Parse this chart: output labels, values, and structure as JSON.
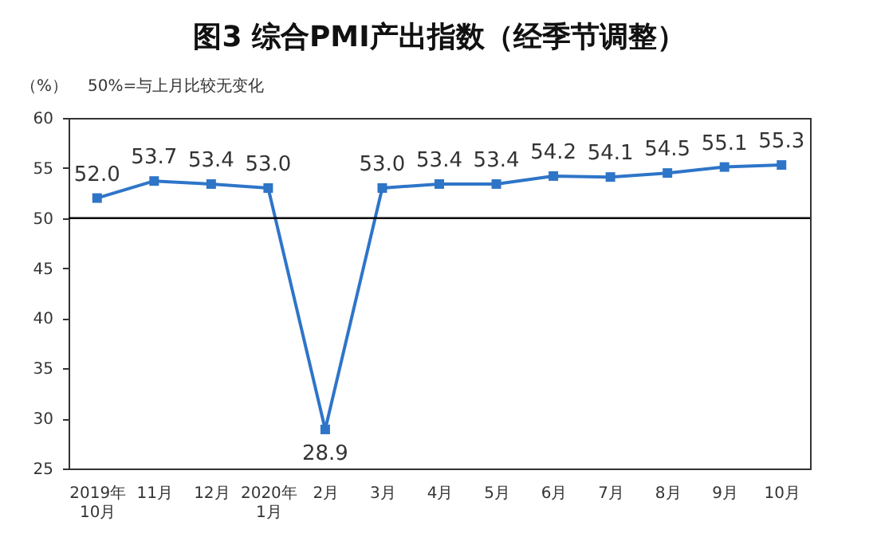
{
  "chart_data": {
    "type": "line",
    "title": "图3 综合PMI产出指数（经季节调整）",
    "ylabel": "（%）",
    "annotations": [
      "50%=与上月比较无变化"
    ],
    "categories": [
      "2019年\n10月",
      "11月",
      "12月",
      "2020年\n1月",
      "2月",
      "3月",
      "4月",
      "5月",
      "6月",
      "7月",
      "8月",
      "9月",
      "10月"
    ],
    "series": [
      {
        "color": "#2e75c8",
        "values": [
          52.0,
          53.7,
          53.4,
          53.0,
          28.9,
          53.0,
          53.4,
          53.4,
          54.2,
          54.1,
          54.5,
          55.1,
          55.3
        ]
      }
    ],
    "value_labels": [
      "52.0",
      "53.7",
      "53.4",
      "53.0",
      "28.9",
      "53.0",
      "53.4",
      "53.4",
      "54.2",
      "54.1",
      "54.5",
      "55.1",
      "55.3"
    ],
    "ylim": [
      25,
      60
    ],
    "yticks": [
      25,
      30,
      35,
      40,
      45,
      50,
      55,
      60
    ],
    "grid": false,
    "marker": "square",
    "line_style": "solid",
    "ref_lines": [
      {
        "axis": "y",
        "value": 50,
        "color": "#000000"
      }
    ]
  }
}
